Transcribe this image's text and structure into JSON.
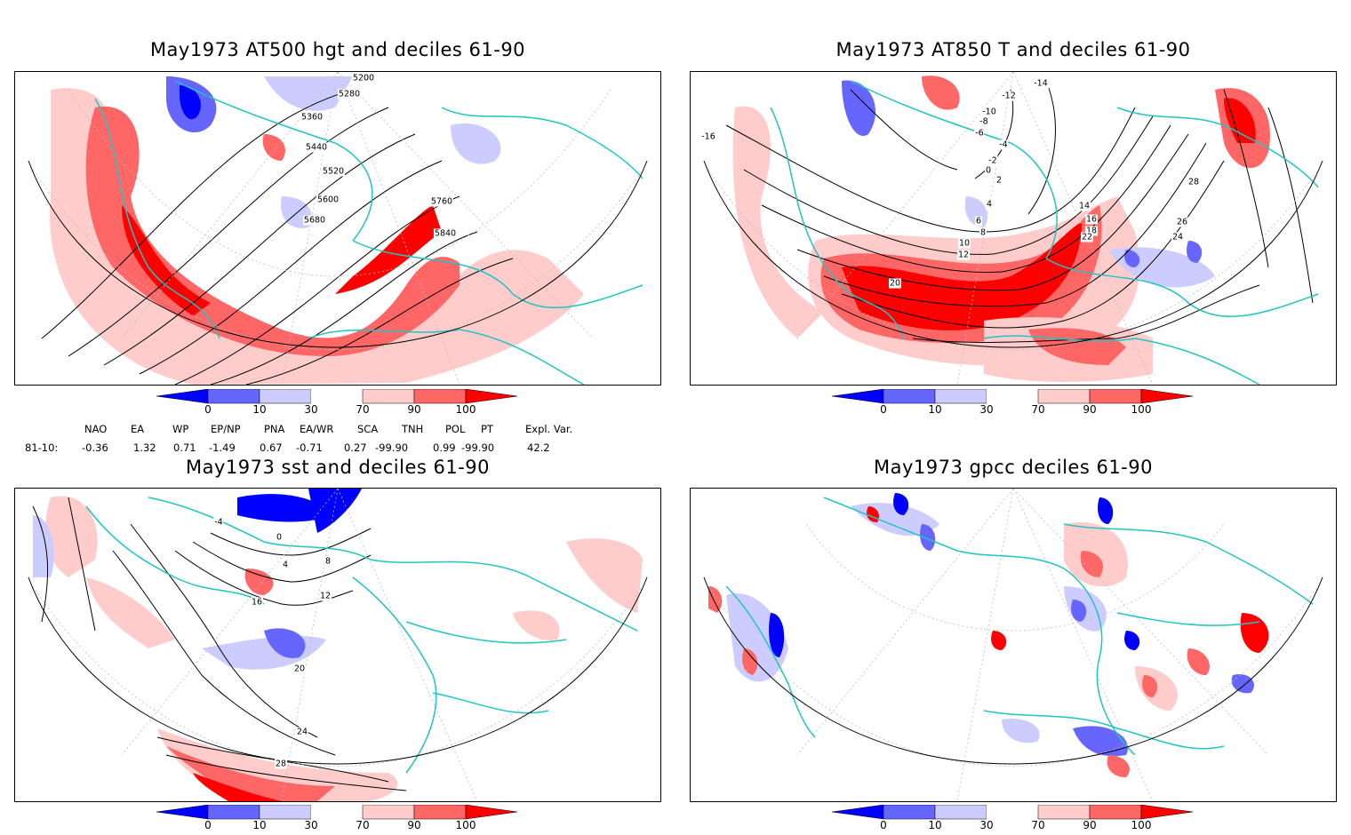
{
  "panels": [
    {
      "title": "May1973 AT500 hgt and deciles 61-90",
      "contour_labels": [
        "5200",
        "5280",
        "5360",
        "5440",
        "5520",
        "5600",
        "5680",
        "5760",
        "5840"
      ]
    },
    {
      "title": "May1973 AT850 T and deciles 61-90",
      "contour_labels": [
        "-16",
        "-14",
        "-12",
        "-10",
        "-8",
        "-6",
        "-4",
        "-2",
        "0",
        "2",
        "4",
        "6",
        "8",
        "10",
        "12",
        "14",
        "16",
        "18",
        "20",
        "22",
        "24",
        "26",
        "28"
      ]
    },
    {
      "title": "May1973 sst and deciles 61-90",
      "contour_labels": [
        "-4",
        "0",
        "4",
        "8",
        "12",
        "16",
        "20",
        "24",
        "28"
      ]
    },
    {
      "title": "May1973 gpcc deciles 61-90",
      "contour_labels": []
    }
  ],
  "colorbar": {
    "tick_labels": [
      "0",
      "10",
      "30",
      "70",
      "90",
      "100"
    ],
    "colors": [
      "#0000ff",
      "#6666ff",
      "#ccccff",
      "#ffffff",
      "#ffcccc",
      "#ff6666",
      "#ff0000"
    ]
  },
  "teleconnection": {
    "row_label": "81-10:",
    "headers": [
      "NAO",
      "EA",
      "WP",
      "EP/NP",
      "PNA",
      "EA/WR",
      "SCA",
      "TNH",
      "POL",
      "PT",
      "Expl. Var."
    ],
    "values": [
      "-0.36",
      "1.32",
      "0.71",
      "-1.49",
      "0.67",
      "-0.71",
      "0.27",
      "-99.90",
      "0.99",
      "-99.90",
      "42.2"
    ]
  },
  "map_style": {
    "coastline_color": "#1fc4c4",
    "contour_color": "#000000",
    "grid_color": "#bbbbbb"
  }
}
